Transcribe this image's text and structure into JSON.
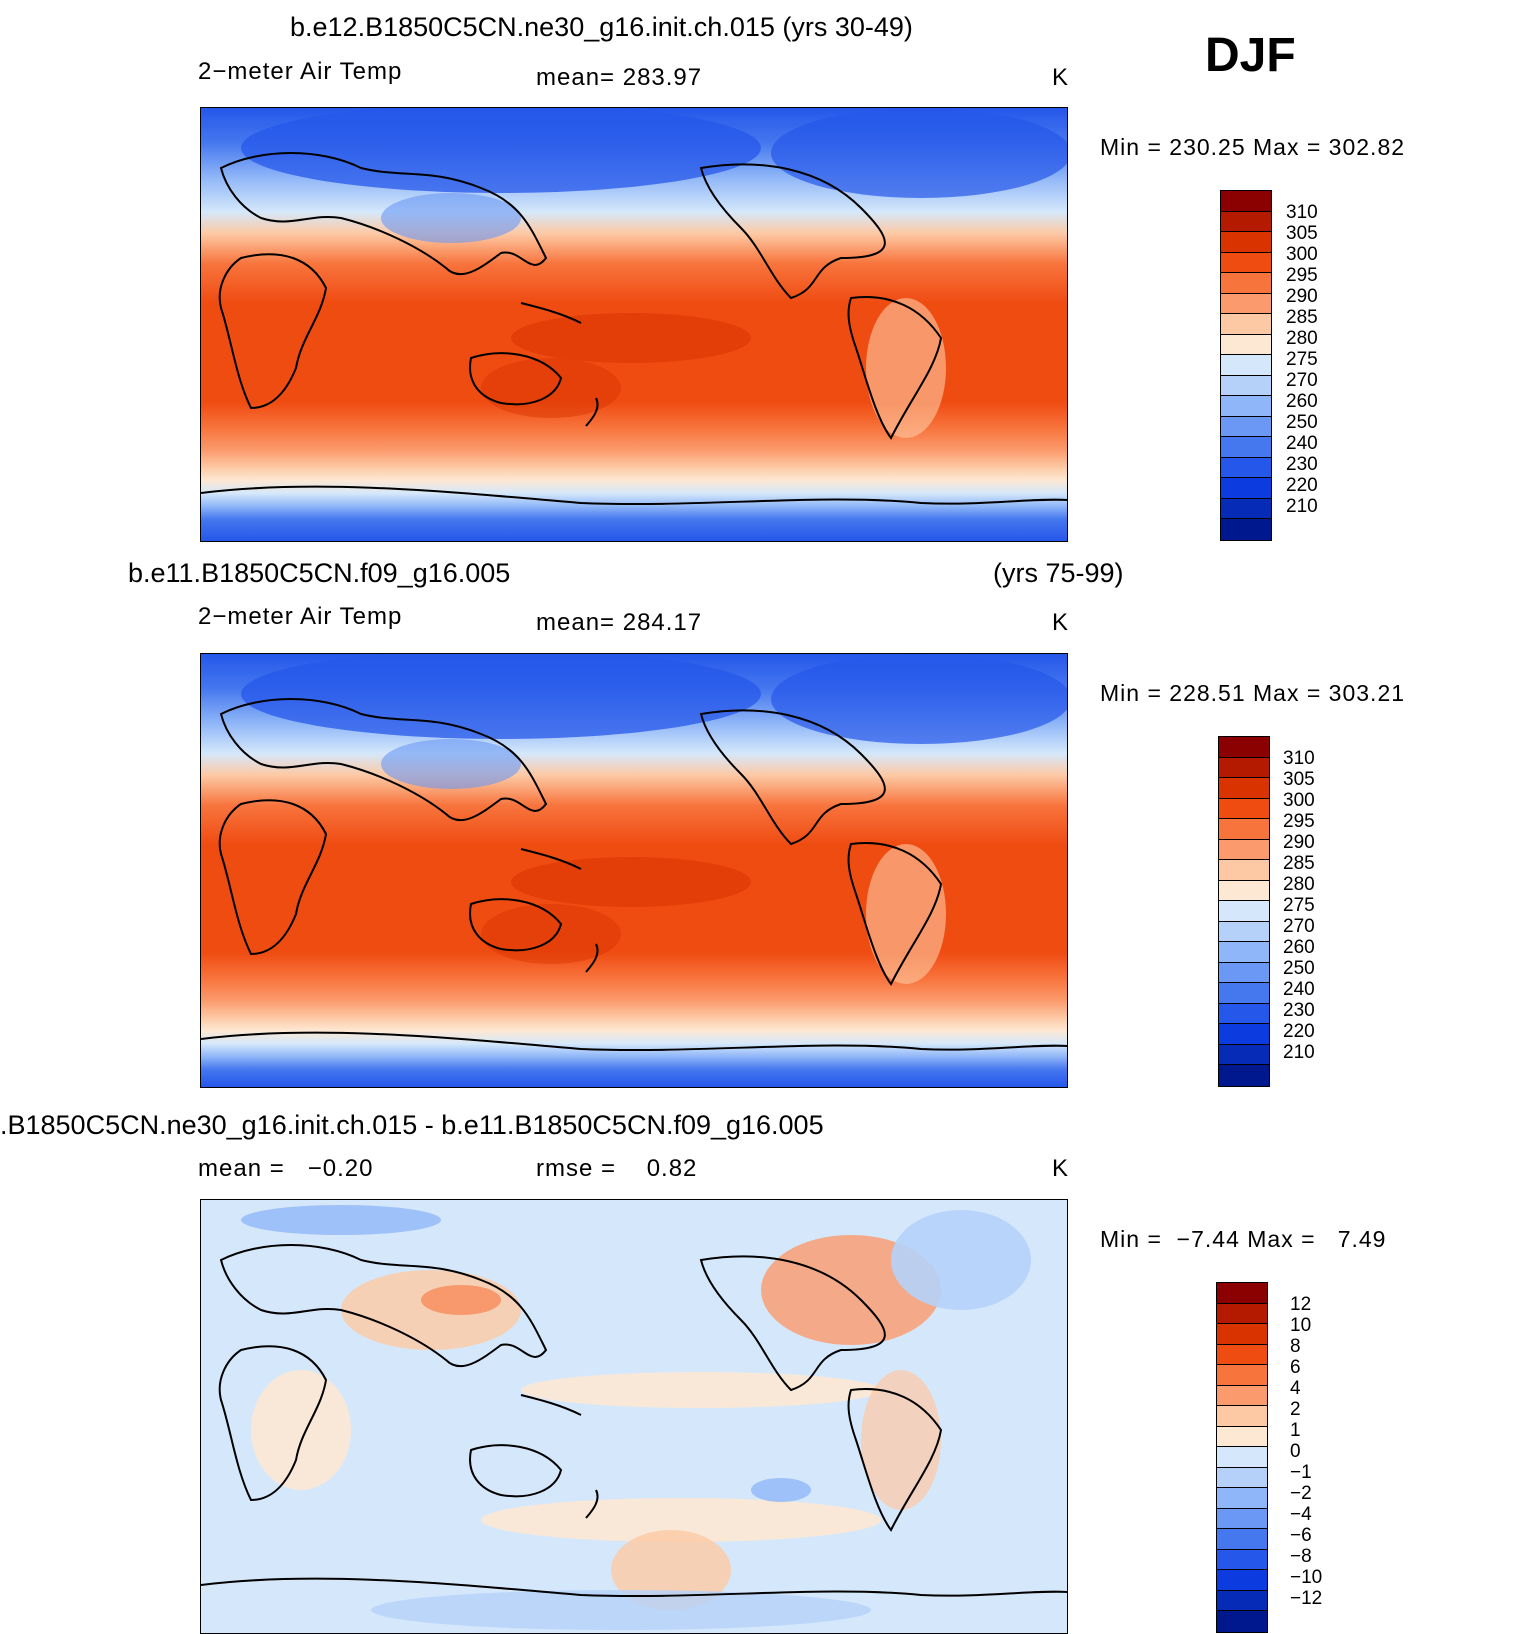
{
  "header": {
    "season": "DJF"
  },
  "panels": [
    {
      "id": "p1",
      "title": "b.e12.B1850C5CN.ne30_g16.init.ch.015 (yrs 30-49)",
      "title_right": "",
      "left_label": "2−meter Air Temp",
      "center_label": "mean= 283.97",
      "units": "K",
      "minmax": "Min = 230.25 Max = 302.82",
      "colorbar": {
        "colors": [
          "#8b0000",
          "#b31a00",
          "#d93300",
          "#ef4c12",
          "#f8743d",
          "#fb9a6c",
          "#fdc9a4",
          "#fde8d4",
          "#d5e8fb",
          "#b5d1fa",
          "#8fb6f8",
          "#6a98f4",
          "#4577ef",
          "#2557ea",
          "#0c3be0",
          "#062bb7",
          "#00188e"
        ],
        "labels": [
          "310",
          "305",
          "300",
          "295",
          "290",
          "285",
          "280",
          "275",
          "270",
          "260",
          "250",
          "240",
          "230",
          "220",
          "210"
        ]
      }
    },
    {
      "id": "p2",
      "title": "b.e11.B1850C5CN.f09_g16.005",
      "title_right": "(yrs 75-99)",
      "left_label": "2−meter Air Temp",
      "center_label": "mean= 284.17",
      "units": "K",
      "minmax": "Min = 228.51 Max = 303.21",
      "colorbar": {
        "colors": [
          "#8b0000",
          "#b31a00",
          "#d93300",
          "#ef4c12",
          "#f8743d",
          "#fb9a6c",
          "#fdc9a4",
          "#fde8d4",
          "#d5e8fb",
          "#b5d1fa",
          "#8fb6f8",
          "#6a98f4",
          "#4577ef",
          "#2557ea",
          "#0c3be0",
          "#062bb7",
          "#00188e"
        ],
        "labels": [
          "310",
          "305",
          "300",
          "295",
          "290",
          "285",
          "280",
          "275",
          "270",
          "260",
          "250",
          "240",
          "230",
          "220",
          "210"
        ]
      }
    },
    {
      "id": "p3",
      "title": ".B1850C5CN.ne30_g16.init.ch.015 - b.e11.B1850C5CN.f09_g16.005",
      "title_right": "",
      "left_label": "mean =   −0.20",
      "center_label": "rmse =    0.82",
      "units": "K",
      "minmax": "Min =  −7.44 Max =   7.49",
      "colorbar": {
        "colors": [
          "#8b0000",
          "#b31a00",
          "#d93300",
          "#ef4c12",
          "#f8743d",
          "#fb9a6c",
          "#fdc9a4",
          "#fde8d4",
          "#d5e8fb",
          "#b5d1fa",
          "#8fb6f8",
          "#6a98f4",
          "#4577ef",
          "#2557ea",
          "#0c3be0",
          "#062bb7",
          "#00188e"
        ],
        "labels": [
          "12",
          "10",
          "8",
          "6",
          "4",
          "2",
          "1",
          "0",
          "−1",
          "−2",
          "−4",
          "−6",
          "−8",
          "−10",
          "−12"
        ]
      }
    }
  ]
}
